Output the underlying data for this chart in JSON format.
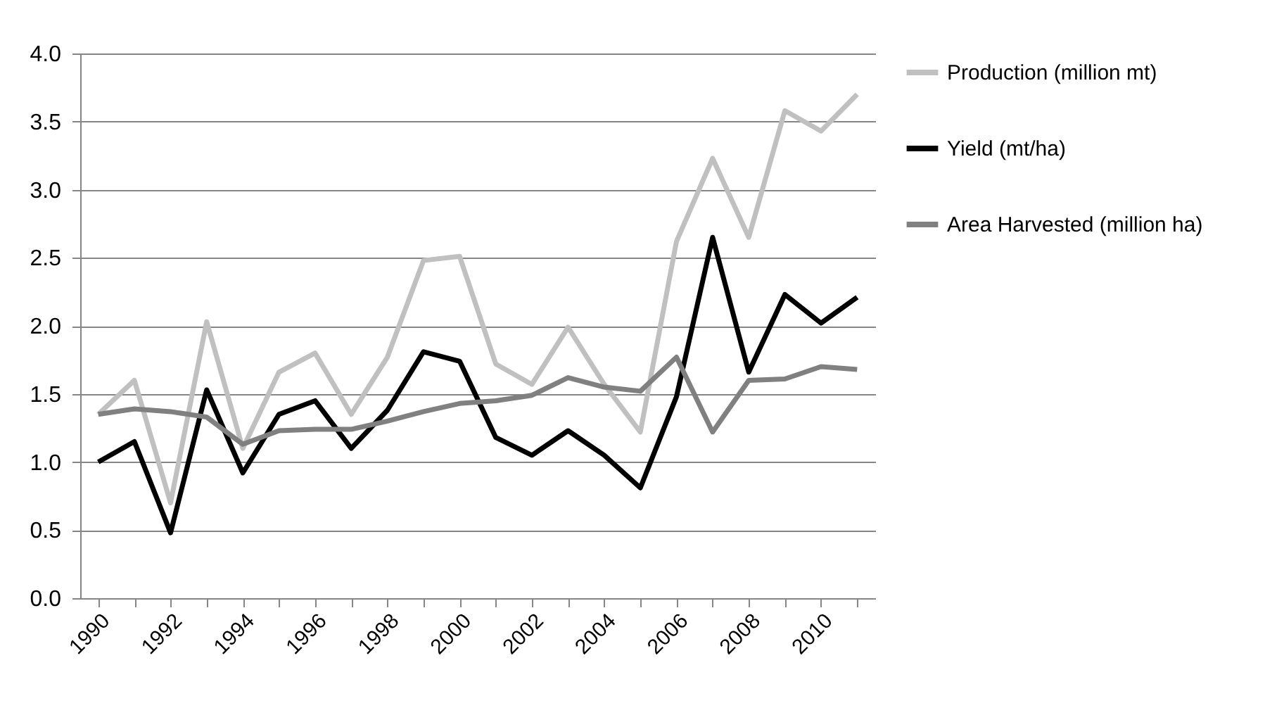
{
  "chart_data": {
    "type": "line",
    "categories": [
      "1990",
      null,
      "1992",
      null,
      "1994",
      null,
      "1996",
      null,
      "1998",
      null,
      "2000",
      null,
      "2002",
      null,
      "2004",
      null,
      "2006",
      null,
      "2008",
      null,
      "2010",
      null
    ],
    "series": [
      {
        "name": "Production (million mt)",
        "color": "#c0c0c0",
        "values": [
          1.35,
          1.6,
          0.7,
          2.03,
          1.1,
          1.66,
          1.8,
          1.35,
          1.77,
          2.48,
          2.51,
          1.72,
          1.57,
          1.99,
          1.57,
          1.22,
          2.62,
          3.23,
          2.65,
          3.58,
          3.43,
          3.7
        ]
      },
      {
        "name": "Yield (mt/ha)",
        "color": "#000000",
        "values": [
          1.0,
          1.15,
          0.48,
          1.53,
          0.92,
          1.35,
          1.45,
          1.1,
          1.38,
          1.81,
          1.74,
          1.18,
          1.05,
          1.23,
          1.05,
          0.81,
          1.48,
          2.65,
          1.66,
          2.23,
          2.02,
          2.21
        ]
      },
      {
        "name": "Area Harvested (million ha)",
        "color": "#808080",
        "values": [
          1.35,
          1.39,
          1.37,
          1.33,
          1.13,
          1.23,
          1.24,
          1.24,
          1.3,
          1.37,
          1.43,
          1.45,
          1.49,
          1.62,
          1.55,
          1.52,
          1.77,
          1.22,
          1.6,
          1.61,
          1.7,
          1.68
        ]
      }
    ],
    "ylim": [
      0,
      4
    ],
    "yticks": [
      {
        "value": 0,
        "label": "0.0"
      },
      {
        "value": 0.5,
        "label": "0.5"
      },
      {
        "value": 1,
        "label": "1.0"
      },
      {
        "value": 1.5,
        "label": "1.5"
      },
      {
        "value": 2,
        "label": "2.0"
      },
      {
        "value": 2.5,
        "label": "2.5"
      },
      {
        "value": 3,
        "label": "3.0"
      },
      {
        "value": 3.5,
        "label": "3.5"
      },
      {
        "value": 4,
        "label": "4.0"
      }
    ],
    "grid": "y",
    "legend": "right",
    "line_style": "solid",
    "marker": "none"
  }
}
